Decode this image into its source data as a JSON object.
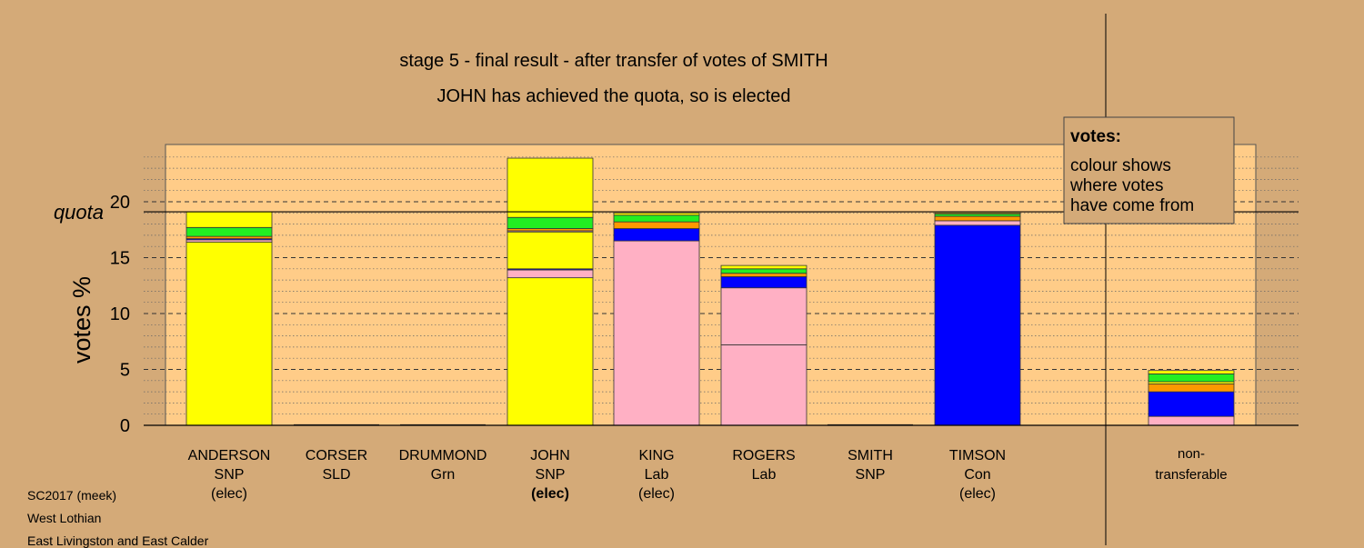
{
  "chart_data": {
    "type": "bar",
    "stacked": true,
    "title": "stage 5 - final result - after transfer of votes of SMITH",
    "subtitle": "JOHN has achieved the quota, so is elected",
    "ylabel": "votes %",
    "quota_label": "quota",
    "quota": 19.1,
    "ylim": [
      0,
      25
    ],
    "yticks": [
      0,
      5,
      10,
      15,
      20
    ],
    "grid": true,
    "legend": {
      "position": "top-right",
      "title": "votes:",
      "lines": [
        "colour shows",
        "where votes",
        "have come from"
      ]
    },
    "colors": {
      "SNP": "#ffff00",
      "Lab": "#ffb0c4",
      "Con": "#0000ff",
      "Grn": "#22ee22",
      "SLD": "#ff9900",
      "plot_bg": "#ffcc88",
      "page_bg": "#d4aa78"
    },
    "categories": [
      {
        "name": "ANDERSON",
        "party": "SNP",
        "status": "(elec)",
        "status_bold": false,
        "segments": [
          {
            "party": "SNP",
            "value": 16.4
          },
          {
            "party": "Lab",
            "value": 0.2
          },
          {
            "party": "Con",
            "value": 0.1
          },
          {
            "party": "SLD",
            "value": 0.2
          },
          {
            "party": "Grn",
            "value": 0.8
          },
          {
            "party": "SNP",
            "value": 1.4
          }
        ]
      },
      {
        "name": "CORSER",
        "party": "SLD",
        "status": "",
        "status_bold": false,
        "segments": []
      },
      {
        "name": "DRUMMOND",
        "party": "Grn",
        "status": "",
        "status_bold": false,
        "segments": []
      },
      {
        "name": "JOHN",
        "party": "SNP",
        "status": "(elec)",
        "status_bold": true,
        "segments": [
          {
            "party": "SNP",
            "value": 13.2
          },
          {
            "party": "Lab",
            "value": 0.7
          },
          {
            "party": "Con",
            "value": 0.1
          },
          {
            "party": "SNP",
            "value": 3.3
          },
          {
            "party": "Lab",
            "value": 0.1
          },
          {
            "party": "SLD",
            "value": 0.2
          },
          {
            "party": "Grn",
            "value": 1.0
          },
          {
            "party": "SNP",
            "value": 5.3
          }
        ]
      },
      {
        "name": "KING",
        "party": "Lab",
        "status": "(elec)",
        "status_bold": false,
        "segments": [
          {
            "party": "Lab",
            "value": 16.5
          },
          {
            "party": "Con",
            "value": 1.1
          },
          {
            "party": "SLD",
            "value": 0.6
          },
          {
            "party": "Grn",
            "value": 0.6
          },
          {
            "party": "SNP",
            "value": 0.2
          }
        ]
      },
      {
        "name": "ROGERS",
        "party": "Lab",
        "status": "",
        "status_bold": false,
        "segments": [
          {
            "party": "Lab",
            "value": 7.2
          },
          {
            "party": "Lab",
            "value": 5.1
          },
          {
            "party": "Con",
            "value": 1.0
          },
          {
            "party": "SLD",
            "value": 0.3
          },
          {
            "party": "Grn",
            "value": 0.4
          },
          {
            "party": "SNP",
            "value": 0.3
          }
        ]
      },
      {
        "name": "SMITH",
        "party": "SNP",
        "status": "",
        "status_bold": false,
        "segments": []
      },
      {
        "name": "TIMSON",
        "party": "Con",
        "status": "(elec)",
        "status_bold": false,
        "segments": [
          {
            "party": "Con",
            "value": 17.9
          },
          {
            "party": "Lab",
            "value": 0.4
          },
          {
            "party": "SLD",
            "value": 0.4
          },
          {
            "party": "Grn",
            "value": 0.2
          },
          {
            "party": "SNP",
            "value": 0.1
          }
        ]
      }
    ],
    "nontransferable": {
      "label_line1": "non-",
      "label_line2": "transferable",
      "segments": [
        {
          "party": "Lab",
          "value": 0.8
        },
        {
          "party": "Con",
          "value": 2.2
        },
        {
          "party": "SLD",
          "value": 0.7
        },
        {
          "party": "SNP",
          "value": 0.2
        },
        {
          "party": "Grn",
          "value": 0.7
        },
        {
          "party": "SNP",
          "value": 0.3
        }
      ]
    }
  },
  "footer": {
    "line1": "SC2017 (meek)",
    "line2": "West Lothian",
    "line3": "East Livingston and East Calder"
  }
}
